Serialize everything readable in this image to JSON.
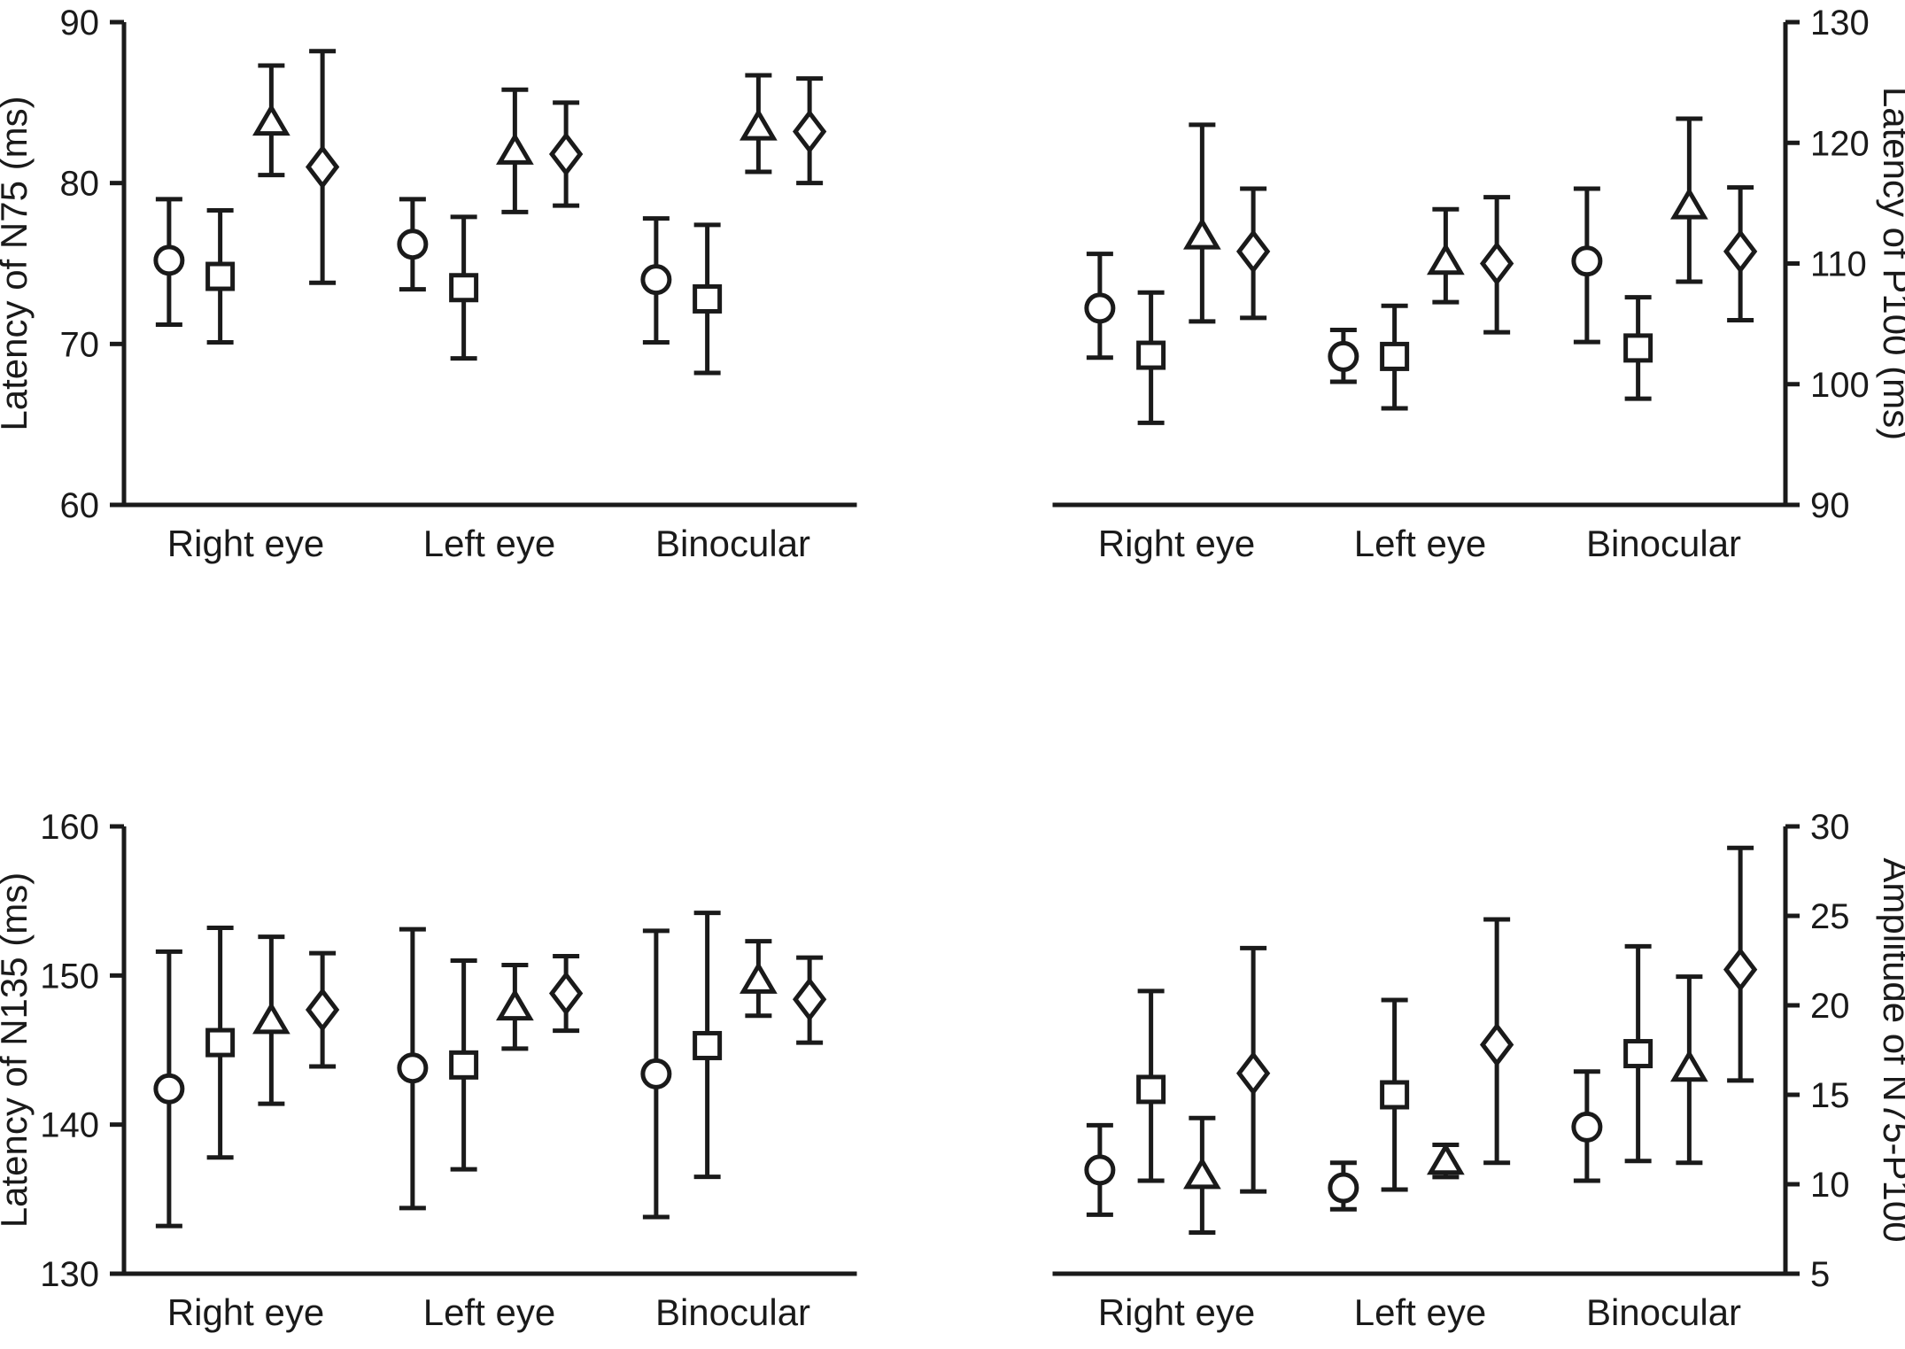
{
  "figure": {
    "background": "#ffffff",
    "ink": "#1a1a1a"
  },
  "chart_data": [
    {
      "id": "n75",
      "type": "scatter",
      "title": "",
      "xlabel": "",
      "ylabel": "Latency of N75 (ms)",
      "axis_side": "left",
      "ylim": [
        60,
        90
      ],
      "yticks": [
        60,
        70,
        80,
        90
      ],
      "grid": false,
      "legend": "none",
      "categories": [
        "Right eye",
        "Left eye",
        "Binocular"
      ],
      "series": [
        {
          "name": "circle",
          "marker": "circle",
          "means": [
            75.2,
            76.2,
            74.0
          ],
          "lower": [
            71.2,
            73.4,
            70.1
          ],
          "upper": [
            79.0,
            79.0,
            77.8
          ]
        },
        {
          "name": "square",
          "marker": "square",
          "means": [
            74.2,
            73.5,
            72.8
          ],
          "lower": [
            70.1,
            69.1,
            68.2
          ],
          "upper": [
            78.3,
            77.9,
            77.4
          ]
        },
        {
          "name": "triangle",
          "marker": "triangle",
          "means": [
            83.8,
            82.0,
            83.5
          ],
          "lower": [
            80.5,
            78.2,
            80.7
          ],
          "upper": [
            87.3,
            85.8,
            86.7
          ]
        },
        {
          "name": "diamond",
          "marker": "diamond",
          "means": [
            81.0,
            81.8,
            83.2
          ],
          "lower": [
            73.8,
            78.6,
            80.0
          ],
          "upper": [
            88.2,
            85.0,
            86.5
          ]
        }
      ]
    },
    {
      "id": "p100",
      "type": "scatter",
      "title": "",
      "xlabel": "",
      "ylabel": "Latency of P100 (ms)",
      "axis_side": "right",
      "ylim": [
        90,
        130
      ],
      "yticks": [
        90,
        100,
        110,
        120,
        130
      ],
      "grid": false,
      "legend": "none",
      "categories": [
        "Right eye",
        "Left eye",
        "Binocular"
      ],
      "series": [
        {
          "name": "circle",
          "marker": "circle",
          "means": [
            106.3,
            102.3,
            110.2
          ],
          "lower": [
            102.2,
            100.2,
            103.5
          ],
          "upper": [
            110.8,
            104.5,
            116.2
          ]
        },
        {
          "name": "square",
          "marker": "square",
          "means": [
            102.4,
            102.3,
            103.0
          ],
          "lower": [
            96.8,
            98.0,
            98.8
          ],
          "upper": [
            107.6,
            106.5,
            107.2
          ]
        },
        {
          "name": "triangle",
          "marker": "triangle",
          "means": [
            112.3,
            110.2,
            114.8
          ],
          "lower": [
            105.2,
            106.8,
            108.5
          ],
          "upper": [
            121.5,
            114.5,
            122.0
          ]
        },
        {
          "name": "diamond",
          "marker": "diamond",
          "means": [
            111.0,
            110.0,
            111.0
          ],
          "lower": [
            105.5,
            104.3,
            105.3
          ],
          "upper": [
            116.2,
            115.5,
            116.3
          ]
        }
      ]
    },
    {
      "id": "n135",
      "type": "scatter",
      "title": "",
      "xlabel": "",
      "ylabel": "Latency of N135 (ms)",
      "axis_side": "left",
      "ylim": [
        130,
        160
      ],
      "yticks": [
        130,
        140,
        150,
        160
      ],
      "grid": false,
      "legend": "none",
      "categories": [
        "Right eye",
        "Left eye",
        "Binocular"
      ],
      "series": [
        {
          "name": "circle",
          "marker": "circle",
          "means": [
            142.4,
            143.8,
            143.4
          ],
          "lower": [
            133.2,
            134.4,
            133.8
          ],
          "upper": [
            151.6,
            153.1,
            153.0
          ]
        },
        {
          "name": "square",
          "marker": "square",
          "means": [
            145.5,
            144.0,
            145.3
          ],
          "lower": [
            137.8,
            137.0,
            136.5
          ],
          "upper": [
            153.2,
            151.0,
            154.2
          ]
        },
        {
          "name": "triangle",
          "marker": "triangle",
          "means": [
            147.0,
            147.9,
            149.7
          ],
          "lower": [
            141.4,
            145.1,
            147.3
          ],
          "upper": [
            152.6,
            150.7,
            152.3
          ]
        },
        {
          "name": "diamond",
          "marker": "diamond",
          "means": [
            147.7,
            148.8,
            148.4
          ],
          "lower": [
            143.9,
            146.3,
            145.5
          ],
          "upper": [
            151.5,
            151.3,
            151.2
          ]
        }
      ]
    },
    {
      "id": "amplitude",
      "type": "scatter",
      "title": "",
      "xlabel": "",
      "ylabel": "Amplitude of N75-P100",
      "axis_side": "right",
      "ylim": [
        5,
        30
      ],
      "yticks": [
        5,
        10,
        15,
        20,
        25,
        30
      ],
      "grid": false,
      "legend": "none",
      "categories": [
        "Right eye",
        "Left eye",
        "Binocular"
      ],
      "series": [
        {
          "name": "circle",
          "marker": "circle",
          "means": [
            10.8,
            9.8,
            13.2
          ],
          "lower": [
            8.3,
            8.6,
            10.2
          ],
          "upper": [
            13.3,
            11.2,
            16.3
          ]
        },
        {
          "name": "square",
          "marker": "square",
          "means": [
            15.3,
            15.0,
            17.3
          ],
          "lower": [
            10.2,
            9.7,
            11.3
          ],
          "upper": [
            20.8,
            20.3,
            23.3
          ]
        },
        {
          "name": "triangle",
          "marker": "triangle",
          "means": [
            10.5,
            11.3,
            16.5
          ],
          "lower": [
            7.3,
            10.4,
            11.2
          ],
          "upper": [
            13.7,
            12.2,
            21.6
          ]
        },
        {
          "name": "diamond",
          "marker": "diamond",
          "means": [
            16.2,
            17.8,
            22.0
          ],
          "lower": [
            9.6,
            11.2,
            15.8
          ],
          "upper": [
            23.2,
            24.8,
            28.8
          ]
        }
      ]
    }
  ]
}
